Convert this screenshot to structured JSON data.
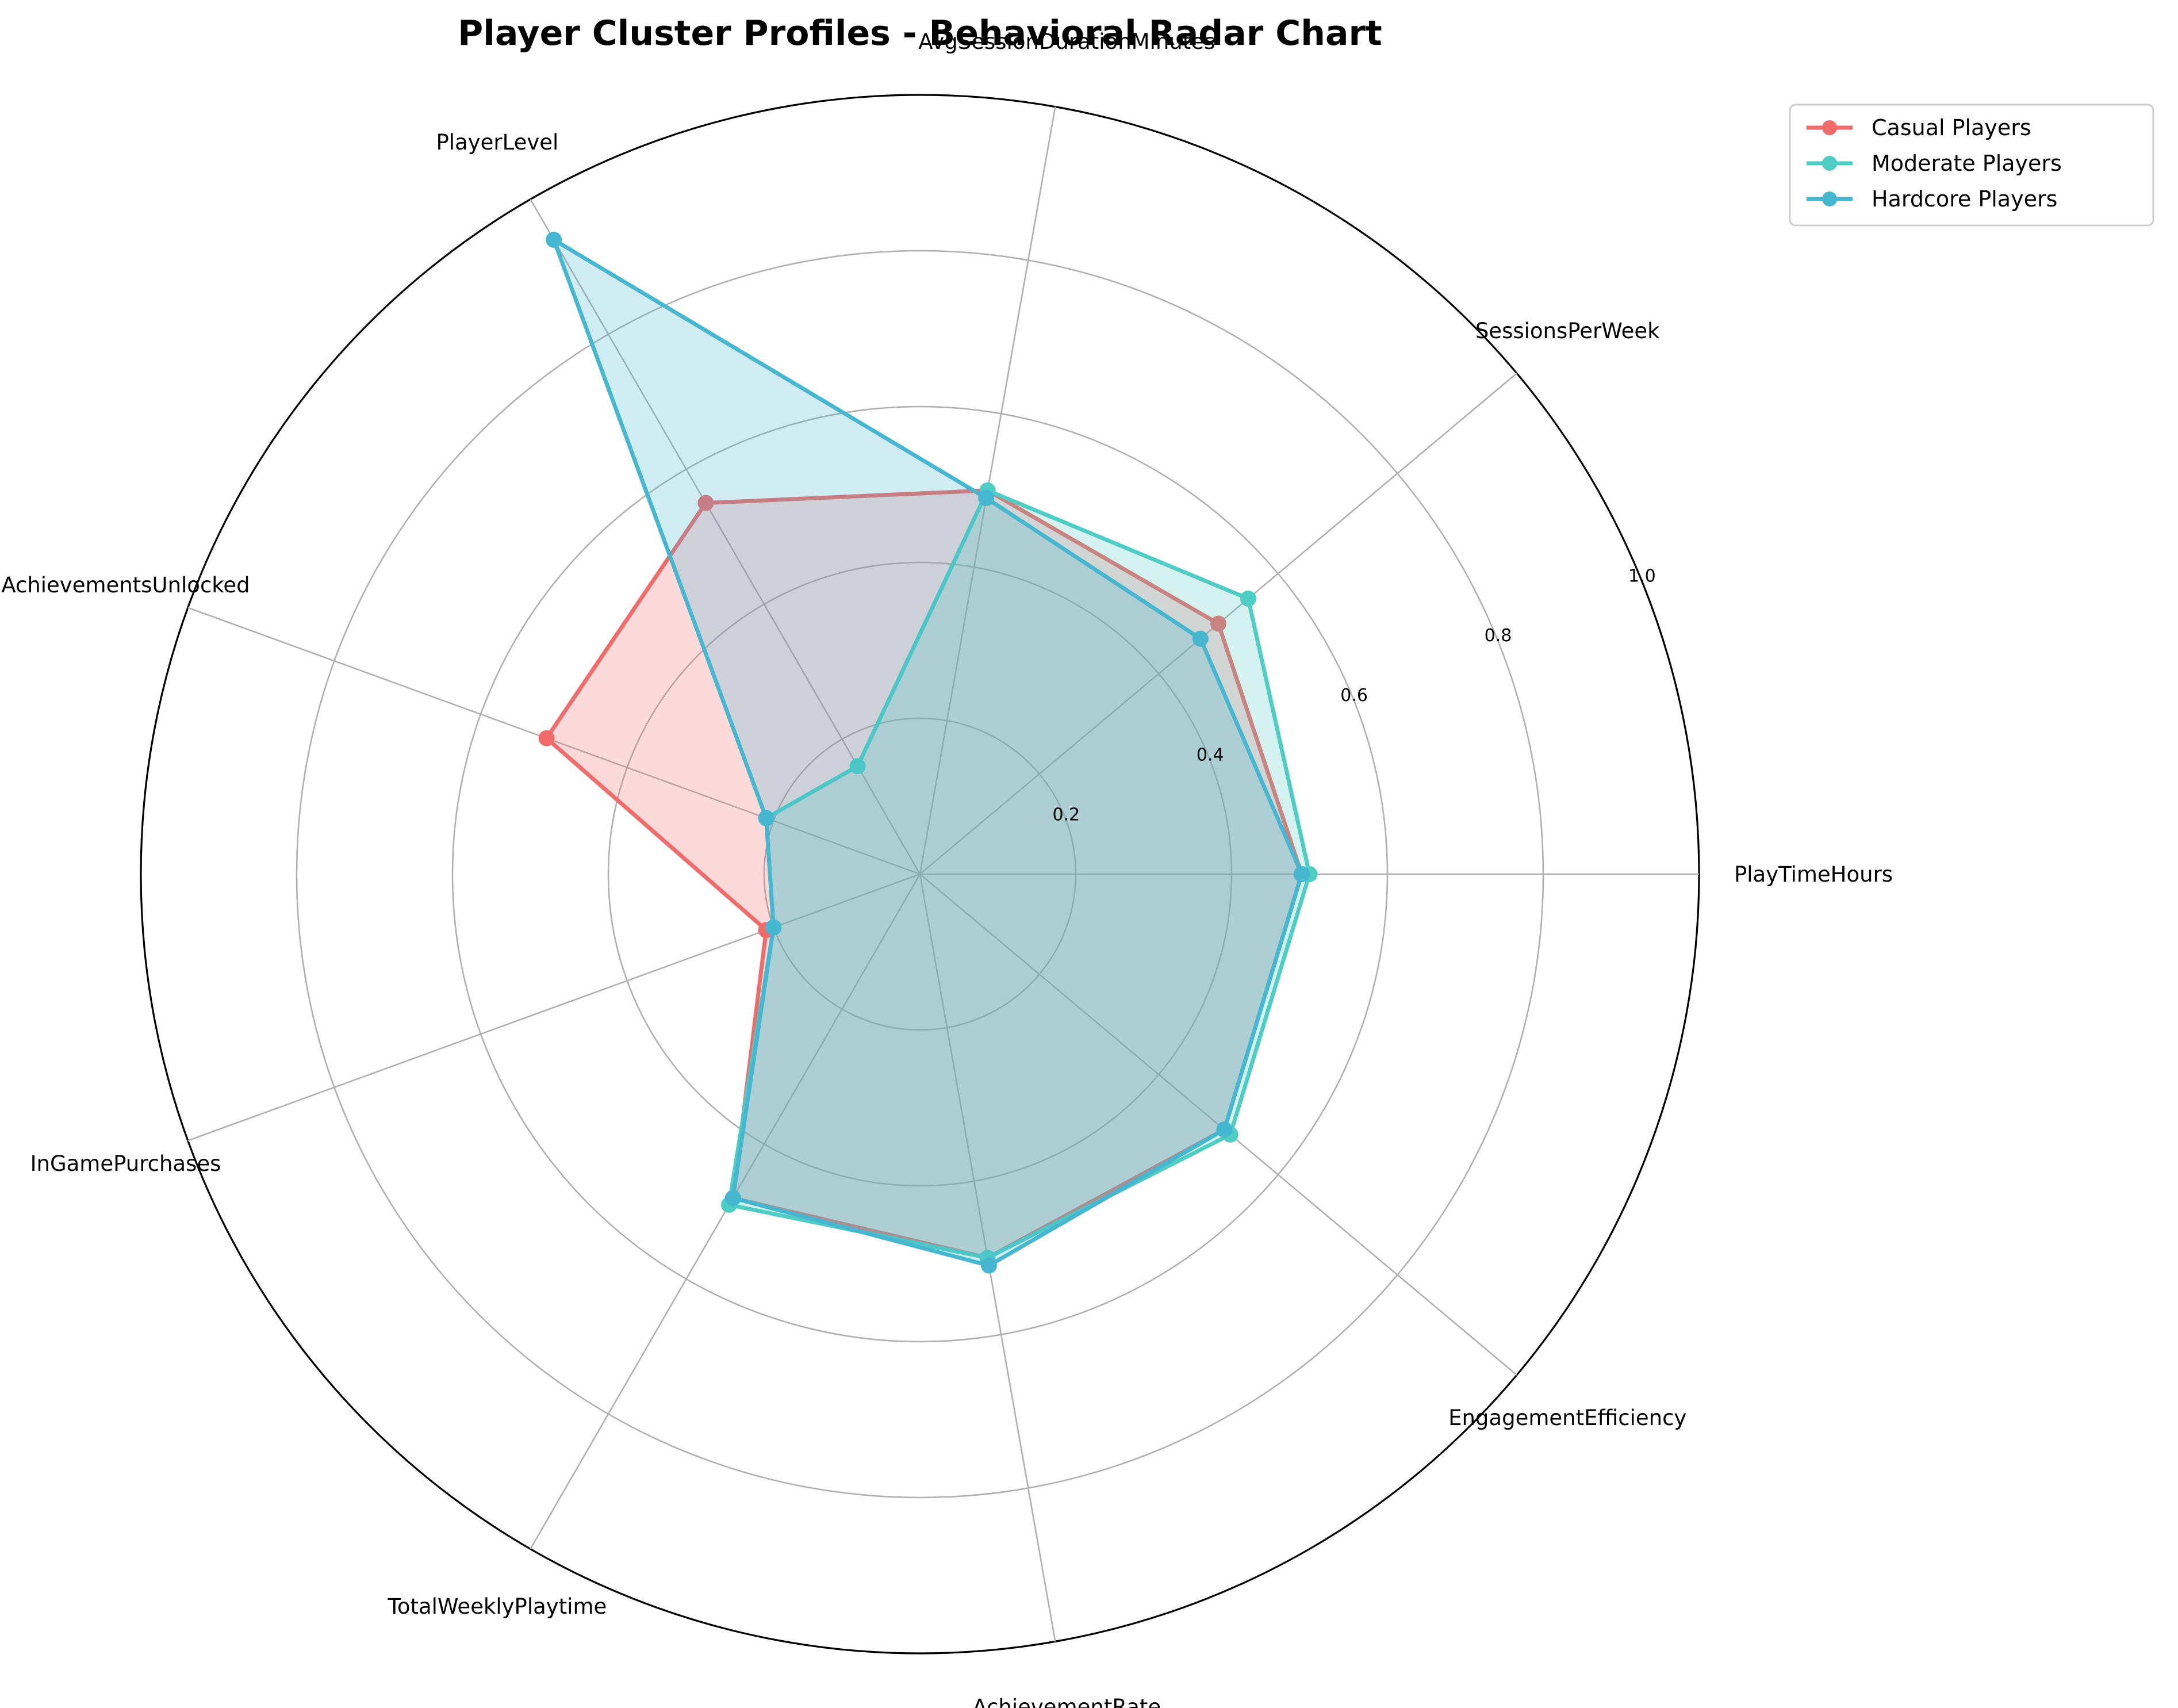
{
  "chart_data": {
    "type": "radar",
    "title": "Player Cluster Profiles - Behavioral Radar Chart",
    "axes": [
      "PlayTimeHours",
      "SessionsPerWeek",
      "AvgSessionDurationMinutes",
      "PlayerLevel",
      "AchievementsUnlocked",
      "InGamePurchases",
      "TotalWeeklyPlaytime",
      "AchievementRate",
      "EngagementEfficiency"
    ],
    "rlim": [
      0,
      1.0
    ],
    "rticks": [
      "0.2",
      "0.4",
      "0.6",
      "0.8",
      "1.0"
    ],
    "rtick_values": [
      0.2,
      0.4,
      0.6,
      0.8,
      1.0
    ],
    "grid": true,
    "legend_position": "top-right",
    "series": [
      {
        "name": "Casual Players",
        "color": "#f26b6b",
        "values": [
          0.49,
          0.5,
          0.5,
          0.55,
          0.51,
          0.21,
          0.48,
          0.5,
          0.51
        ]
      },
      {
        "name": "Moderate Players",
        "color": "#4ecdc4",
        "values": [
          0.5,
          0.55,
          0.5,
          0.16,
          0.21,
          0.2,
          0.49,
          0.5,
          0.52
        ]
      },
      {
        "name": "Hardcore Players",
        "color": "#45b7d1",
        "values": [
          0.49,
          0.47,
          0.49,
          0.94,
          0.21,
          0.2,
          0.48,
          0.51,
          0.51
        ]
      }
    ]
  }
}
